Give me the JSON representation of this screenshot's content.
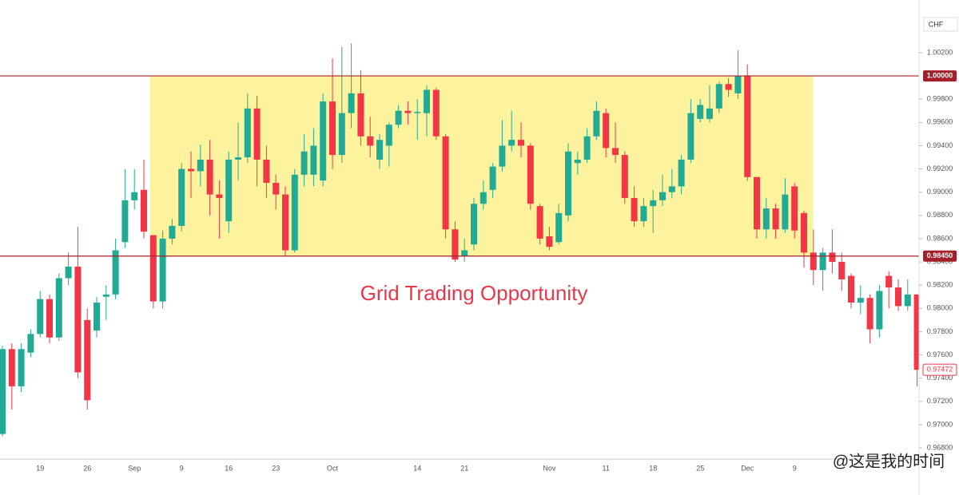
{
  "chart_data": {
    "type": "candlestick",
    "currency": "CHF",
    "annotation": "Grid Trading Opportunity",
    "watermark": "@这是我的时间",
    "last_price_label": "0.97472",
    "up_color": "#22ab94",
    "down_color": "#f23645",
    "zone_color": "#fdf39e",
    "level_color": "#a3202a",
    "levels": [
      {
        "value": 1.0,
        "label": "1.00000"
      },
      {
        "value": 0.9845,
        "label": "0.98450"
      }
    ],
    "ylim": [
      0.96704,
      1.00653
    ],
    "yticks": [
      {
        "value": 0.968,
        "label": "0.96800"
      },
      {
        "value": 0.97,
        "label": "0.97000"
      },
      {
        "value": 0.972,
        "label": "0.97200"
      },
      {
        "value": 0.974,
        "label": "0.97400"
      },
      {
        "value": 0.976,
        "label": "0.97600"
      },
      {
        "value": 0.978,
        "label": "0.97800"
      },
      {
        "value": 0.98,
        "label": "0.98000"
      },
      {
        "value": 0.982,
        "label": "0.98200"
      },
      {
        "value": 0.984,
        "label": "0.98400"
      },
      {
        "value": 0.986,
        "label": "0.98600"
      },
      {
        "value": 0.988,
        "label": "0.98800"
      },
      {
        "value": 0.99,
        "label": "0.99000"
      },
      {
        "value": 0.992,
        "label": "0.99200"
      },
      {
        "value": 0.994,
        "label": "0.99400"
      },
      {
        "value": 0.996,
        "label": "0.99600"
      },
      {
        "value": 0.998,
        "label": "0.99800"
      },
      {
        "value": 1.002,
        "label": "1.00200"
      }
    ],
    "categories": [
      null,
      null,
      null,
      null,
      "19",
      null,
      null,
      null,
      null,
      "26",
      null,
      null,
      null,
      null,
      "Sep",
      null,
      null,
      null,
      null,
      "9",
      null,
      null,
      null,
      null,
      "16",
      null,
      null,
      null,
      null,
      "23",
      null,
      null,
      null,
      null,
      null,
      "Oct",
      null,
      null,
      null,
      null,
      null,
      null,
      null,
      null,
      "14",
      null,
      null,
      null,
      null,
      "21",
      null,
      null,
      null,
      null,
      null,
      null,
      null,
      null,
      "Nov",
      null,
      null,
      null,
      null,
      null,
      "11",
      null,
      null,
      null,
      null,
      "18",
      null,
      null,
      null,
      null,
      "25",
      null,
      null,
      null,
      null,
      "Dec",
      null,
      null,
      null,
      null,
      "9",
      null,
      null,
      null,
      null,
      null,
      null,
      null,
      null,
      null,
      null,
      null,
      null,
      null
    ],
    "open": [
      0.9692,
      0.9765,
      0.9733,
      0.9762,
      0.9778,
      0.9808,
      0.9775,
      0.9826,
      0.9836,
      0.979,
      0.9781,
      0.981,
      0.9812,
      0.9857,
      0.9893,
      0.9902,
      0.9863,
      0.9806,
      0.986,
      0.9871,
      0.992,
      0.9918,
      0.9928,
      0.9898,
      0.9875,
      0.9928,
      0.993,
      0.9972,
      0.9928,
      0.9908,
      0.9898,
      0.985,
      0.9915,
      0.9915,
      0.991,
      0.9978,
      0.9932,
      0.9968,
      0.9985,
      0.9948,
      0.9928,
      0.994,
      0.9958,
      0.997,
      0.9968,
      0.9968,
      0.9988,
      0.9948,
      0.9868,
      0.9845,
      0.9855,
      0.989,
      0.9902,
      0.9922,
      0.994,
      0.9945,
      0.994,
      0.9888,
      0.9862,
      0.9857,
      0.988,
      0.9925,
      0.9928,
      0.9948,
      0.9968,
      0.9938,
      0.9932,
      0.9895,
      0.9875,
      0.9888,
      0.9893,
      0.99,
      0.9905,
      0.9928,
      0.9963,
      0.9963,
      0.9972,
      0.9993,
      0.9985,
      1.0,
      0.9913,
      0.9868,
      0.9886,
      0.9868,
      0.9905,
      0.9882,
      0.9848,
      0.9833,
      0.9848,
      0.984,
      0.9828,
      0.9805,
      0.9809,
      0.9782,
      0.9828,
      0.9818,
      0.9802,
      0.9812
    ],
    "high": [
      0.9768,
      0.977,
      0.977,
      0.9782,
      0.9815,
      0.9812,
      0.983,
      0.9848,
      0.987,
      0.98,
      0.981,
      0.982,
      0.986,
      0.992,
      0.992,
      0.9928,
      0.9863,
      0.9867,
      0.9877,
      0.9925,
      0.9935,
      0.9941,
      0.9945,
      0.991,
      0.9935,
      0.996,
      0.9985,
      0.9983,
      0.994,
      0.9915,
      0.9905,
      0.992,
      0.995,
      0.9955,
      0.9985,
      1.0015,
      1.0025,
      1.0028,
      1.0005,
      0.9965,
      0.995,
      0.996,
      0.9975,
      0.9978,
      0.998,
      0.9992,
      0.999,
      0.995,
      0.9875,
      0.986,
      0.9895,
      0.991,
      0.9925,
      0.9962,
      0.997,
      0.996,
      0.9942,
      0.989,
      0.987,
      0.989,
      0.9942,
      0.9935,
      0.9955,
      0.9978,
      0.9972,
      0.996,
      0.9935,
      0.9905,
      0.9895,
      0.9902,
      0.9915,
      0.992,
      0.9932,
      0.998,
      0.998,
      0.9992,
      0.9995,
      0.9998,
      1.0022,
      1.001,
      0.9913,
      0.9895,
      0.989,
      0.9912,
      0.9908,
      0.9884,
      0.9868,
      0.9852,
      0.9868,
      0.9848,
      0.983,
      0.982,
      0.9812,
      0.982,
      0.9832,
      0.9825,
      0.9825,
      0.9812
    ],
    "low": [
      0.969,
      0.9713,
      0.9728,
      0.9758,
      0.9775,
      0.977,
      0.9772,
      0.982,
      0.974,
      0.9713,
      0.9775,
      0.979,
      0.9808,
      0.9852,
      0.9885,
      0.986,
      0.98,
      0.98,
      0.9855,
      0.9866,
      0.9895,
      0.9905,
      0.988,
      0.986,
      0.9865,
      0.991,
      0.9925,
      0.9905,
      0.9895,
      0.9885,
      0.9845,
      0.9848,
      0.9905,
      0.9905,
      0.9905,
      0.992,
      0.9925,
      0.9955,
      0.994,
      0.993,
      0.992,
      0.9922,
      0.9955,
      0.9958,
      0.9945,
      0.9948,
      0.9945,
      0.986,
      0.984,
      0.984,
      0.985,
      0.9885,
      0.9895,
      0.9918,
      0.9935,
      0.993,
      0.9885,
      0.9855,
      0.985,
      0.9855,
      0.9875,
      0.9915,
      0.9925,
      0.9945,
      0.993,
      0.9925,
      0.989,
      0.987,
      0.987,
      0.9865,
      0.9888,
      0.9895,
      0.9898,
      0.9925,
      0.996,
      0.996,
      0.9968,
      0.9982,
      0.998,
      0.991,
      0.986,
      0.986,
      0.986,
      0.9865,
      0.986,
      0.9835,
      0.982,
      0.9815,
      0.983,
      0.9815,
      0.98,
      0.9795,
      0.977,
      0.9775,
      0.98,
      0.9798,
      0.9798,
      0.9733
    ],
    "close": [
      0.9765,
      0.9733,
      0.9765,
      0.9778,
      0.9808,
      0.9775,
      0.9826,
      0.9836,
      0.9745,
      0.9721,
      0.9805,
      0.9812,
      0.985,
      0.9893,
      0.99,
      0.9866,
      0.9806,
      0.986,
      0.9871,
      0.992,
      0.9918,
      0.9928,
      0.9898,
      0.9895,
      0.9928,
      0.993,
      0.9972,
      0.9928,
      0.9908,
      0.9898,
      0.985,
      0.9915,
      0.9935,
      0.994,
      0.9978,
      0.9932,
      0.9968,
      0.9985,
      0.9948,
      0.994,
      0.9945,
      0.9958,
      0.997,
      0.9968,
      0.9969,
      0.9988,
      0.9948,
      0.9868,
      0.9842,
      0.985,
      0.989,
      0.99,
      0.9922,
      0.994,
      0.9945,
      0.994,
      0.989,
      0.986,
      0.9853,
      0.9882,
      0.9935,
      0.9928,
      0.9948,
      0.997,
      0.9938,
      0.9932,
      0.9895,
      0.9875,
      0.9888,
      0.9893,
      0.99,
      0.9905,
      0.9928,
      0.9968,
      0.9975,
      0.9972,
      0.9993,
      0.9988,
      1.0,
      0.9913,
      0.9868,
      0.9886,
      0.9868,
      0.9898,
      0.9867,
      0.9848,
      0.9833,
      0.9848,
      0.984,
      0.9825,
      0.9805,
      0.9809,
      0.9782,
      0.9815,
      0.9818,
      0.9802,
      0.9812,
      0.97472
    ]
  }
}
